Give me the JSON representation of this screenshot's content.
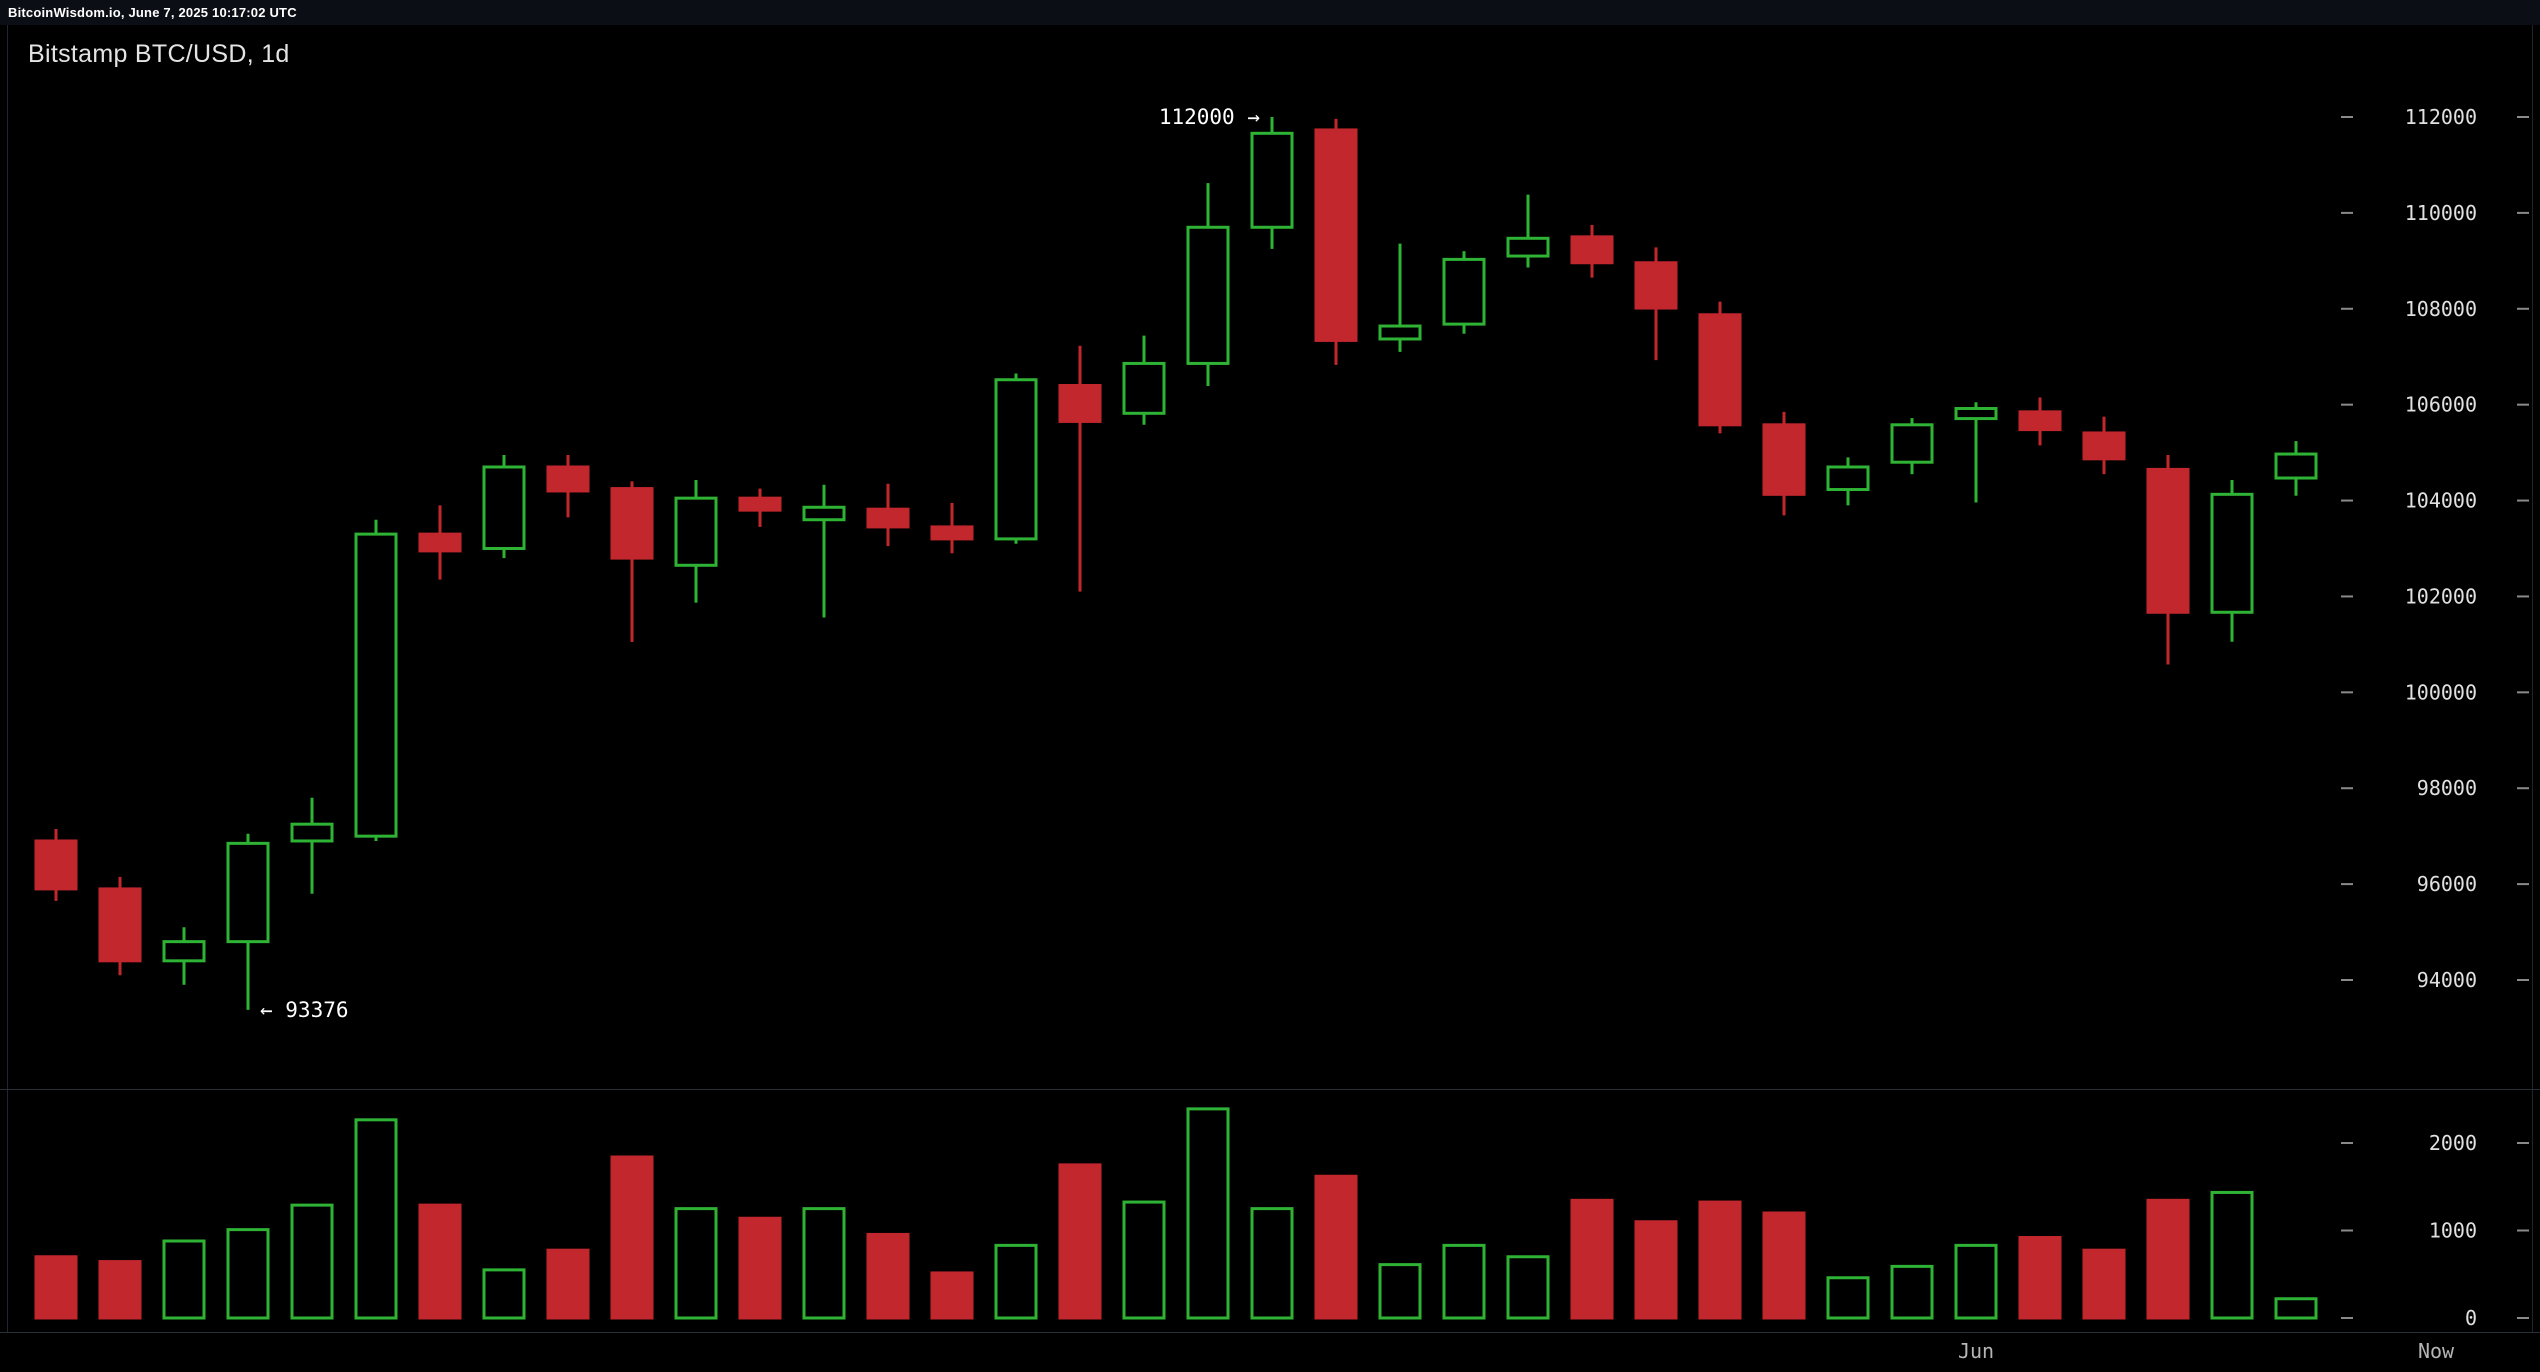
{
  "topbar": {
    "status": "BitcoinWisdom.io, June 7, 2025 10:17:02 UTC"
  },
  "header": {
    "title": "Bitstamp BTC/USD, 1d"
  },
  "colors": {
    "bg": "#000000",
    "topbar_bg": "#0b0e14",
    "up": "#2eb335",
    "down": "#c1272d",
    "axis_text": "#e0e0e0",
    "muted_text": "#b5b5b5",
    "tick": "#8a8a8a",
    "frame": "#2a3038",
    "frame_subtle": "#20262e",
    "annotation": "#ffffff"
  },
  "chart_data": {
    "type": "candlestick",
    "title": "Bitstamp BTC/USD, 1d",
    "exchange": "Bitstamp",
    "pair": "BTC/USD",
    "interval": "1d",
    "price_axis": {
      "side": "right",
      "ticks": [
        112000,
        110000,
        108000,
        106000,
        104000,
        102000,
        100000,
        98000,
        96000,
        94000
      ]
    },
    "volume_axis": {
      "side": "right",
      "ticks": [
        2000,
        1000,
        0
      ]
    },
    "x_labels": [
      {
        "label": "Jun",
        "candle_index": 30
      },
      {
        "label": "Now",
        "align": "right"
      }
    ],
    "annotations": [
      {
        "text": "112000 →",
        "candle_index": 19,
        "price": 112000,
        "side": "left"
      },
      {
        "text": "← 93376",
        "candle_index": 3,
        "price": 93376,
        "side": "right"
      }
    ],
    "candle_format": [
      "open",
      "high",
      "low",
      "close",
      "volume"
    ],
    "candles": [
      [
        96900,
        97150,
        95650,
        95900,
        700
      ],
      [
        95900,
        96150,
        94100,
        94400,
        645
      ],
      [
        94400,
        95100,
        93900,
        94800,
        880
      ],
      [
        94800,
        97050,
        93376,
        96850,
        1010
      ],
      [
        96900,
        97800,
        95800,
        97250,
        1290
      ],
      [
        97000,
        103600,
        96900,
        103300,
        2265
      ],
      [
        103300,
        103900,
        102350,
        102950,
        1290
      ],
      [
        103000,
        104950,
        102800,
        104700,
        550
      ],
      [
        104700,
        104950,
        103650,
        104200,
        775
      ],
      [
        104250,
        104400,
        101050,
        102800,
        1840
      ],
      [
        102650,
        104430,
        101870,
        104050,
        1250
      ],
      [
        104050,
        104250,
        103450,
        103800,
        1140
      ],
      [
        103600,
        104330,
        101560,
        103860,
        1250
      ],
      [
        103820,
        104350,
        103050,
        103450,
        955
      ],
      [
        103450,
        103950,
        102900,
        103200,
        515
      ],
      [
        103200,
        106650,
        103100,
        106520,
        830
      ],
      [
        106400,
        107230,
        102100,
        105650,
        1750
      ],
      [
        105820,
        107440,
        105580,
        106860,
        1325
      ],
      [
        106860,
        110620,
        106390,
        109700,
        2390
      ],
      [
        109700,
        112000,
        109250,
        111660,
        1250
      ],
      [
        111730,
        111960,
        106830,
        107340,
        1620
      ],
      [
        107370,
        109360,
        107100,
        107640,
        610
      ],
      [
        107680,
        109200,
        107480,
        109030,
        830
      ],
      [
        109100,
        110380,
        108860,
        109470,
        700
      ],
      [
        109500,
        109750,
        108650,
        108960,
        1345
      ],
      [
        108960,
        109280,
        106930,
        108015,
        1100
      ],
      [
        107875,
        108150,
        105400,
        105580,
        1325
      ],
      [
        105580,
        105850,
        103690,
        104130,
        1200
      ],
      [
        104230,
        104900,
        103900,
        104700,
        460
      ],
      [
        104800,
        105720,
        104550,
        105580,
        590
      ],
      [
        105710,
        106050,
        103960,
        105920,
        830
      ],
      [
        105850,
        106150,
        105150,
        105480,
        920
      ],
      [
        105410,
        105750,
        104550,
        104870,
        775
      ],
      [
        104650,
        104950,
        100580,
        101670,
        1345
      ],
      [
        101670,
        104430,
        101055,
        104130,
        1435
      ],
      [
        104470,
        105240,
        104100,
        104970,
        220
      ]
    ]
  }
}
